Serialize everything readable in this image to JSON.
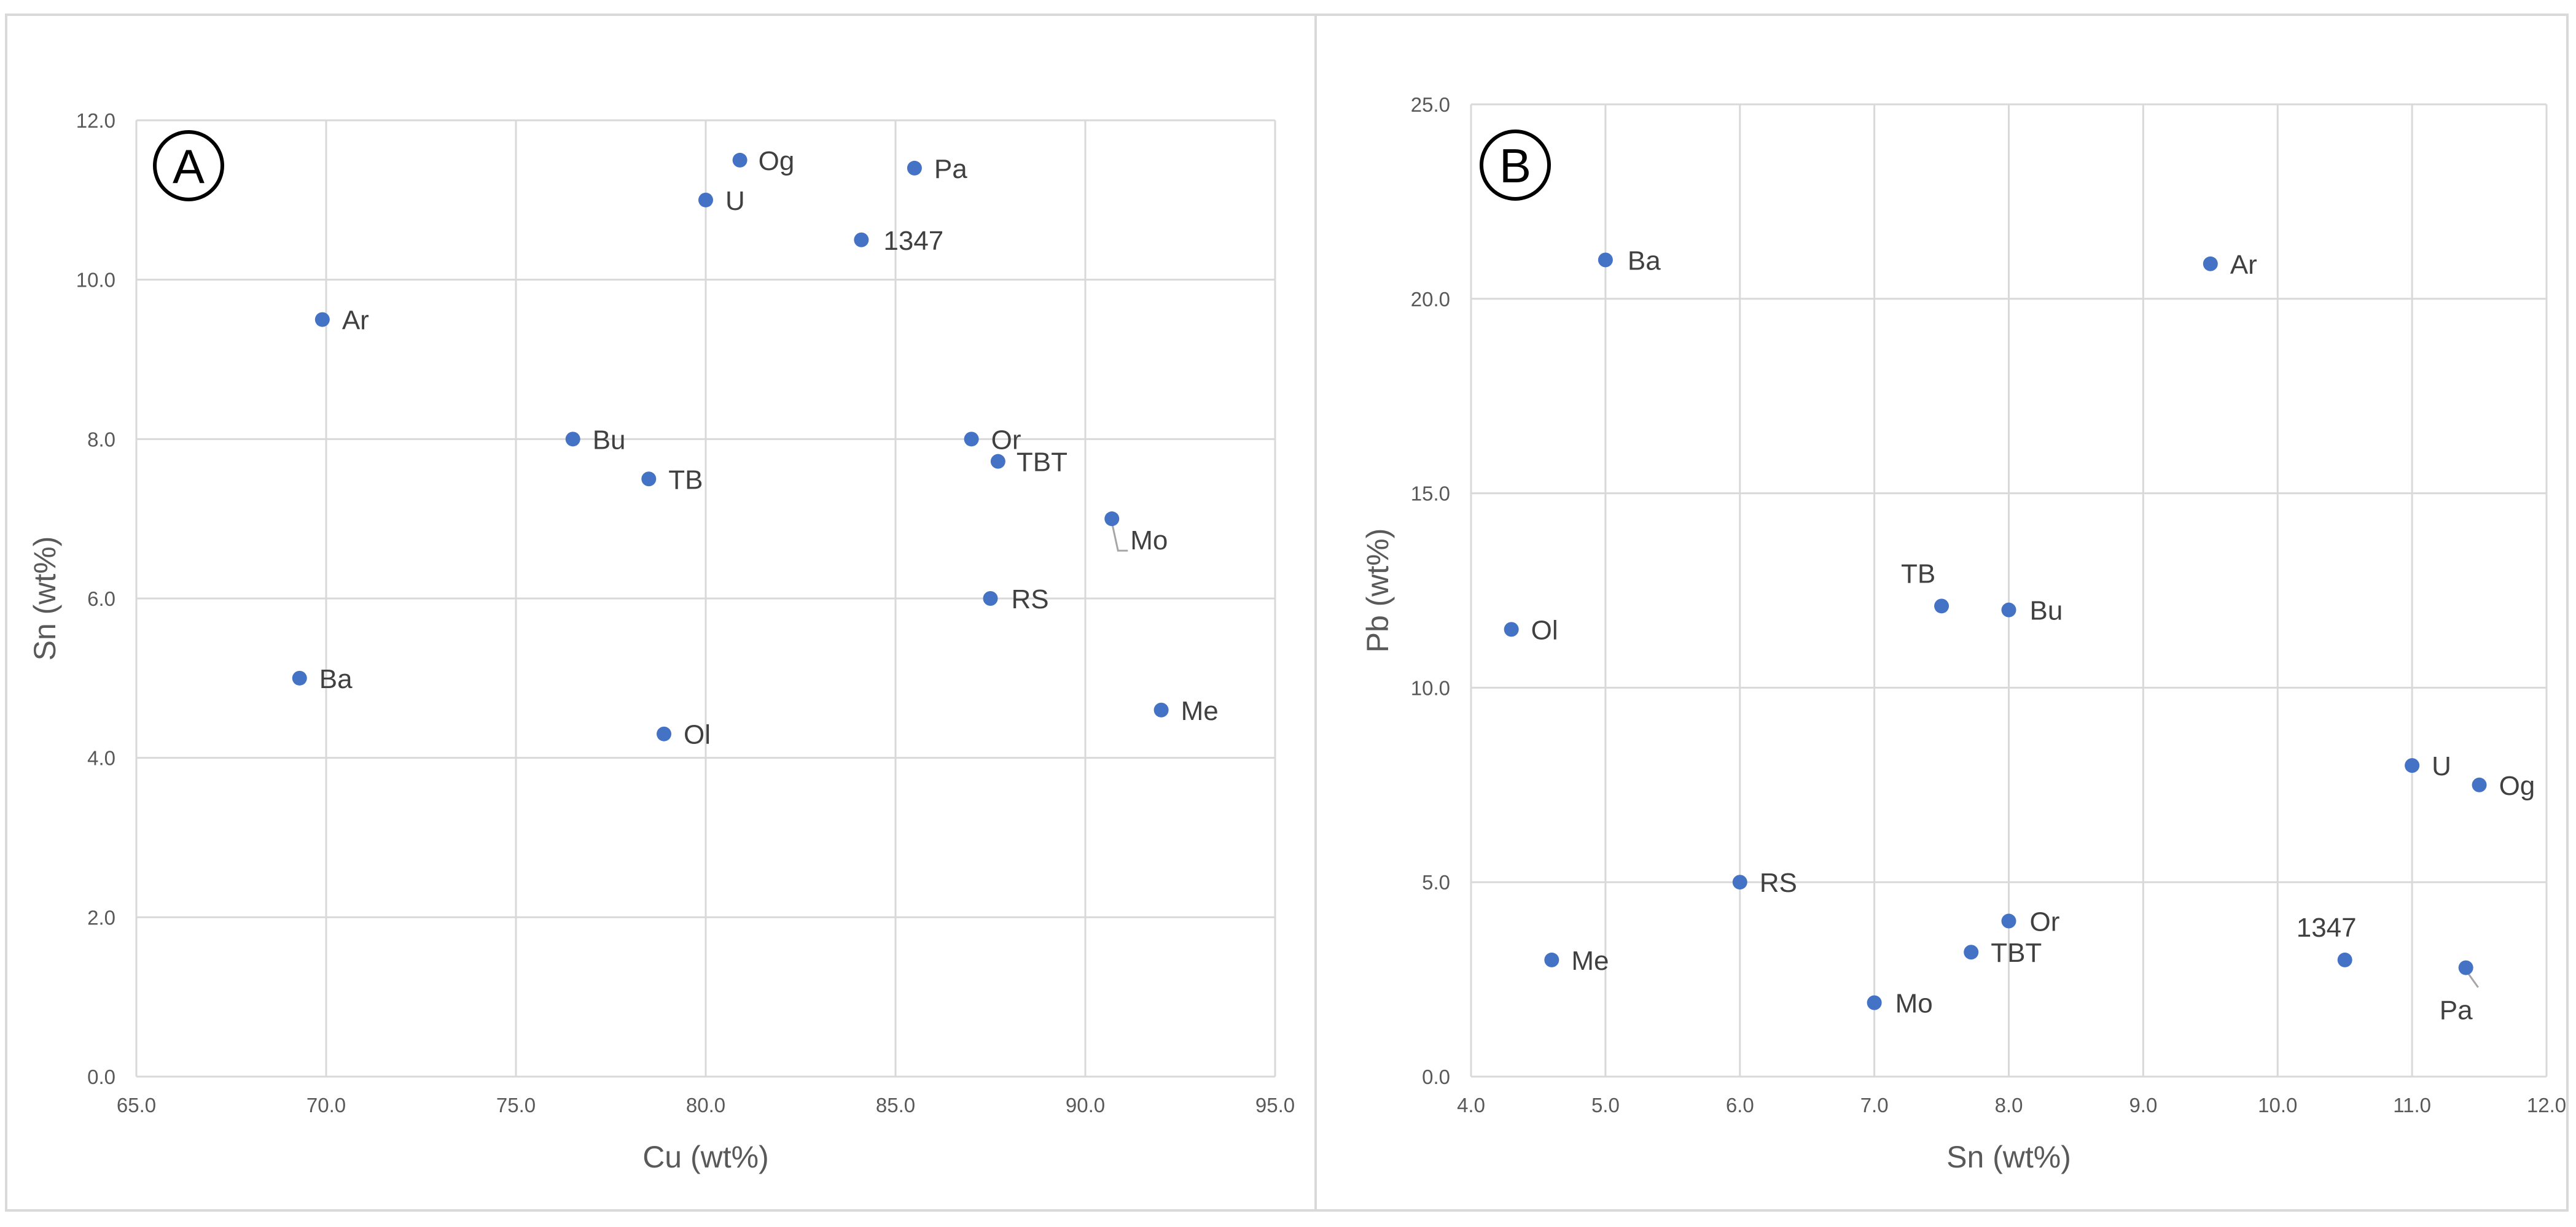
{
  "chart_data": [
    {
      "type": "scatter",
      "panel_label": "A",
      "xlabel": "Cu (wt%)",
      "ylabel": "Sn (wt%)",
      "xlim": [
        65.0,
        95.0
      ],
      "ylim": [
        0.0,
        12.0
      ],
      "xticks": [
        "65.0",
        "70.0",
        "75.0",
        "80.0",
        "85.0",
        "90.0",
        "95.0"
      ],
      "yticks": [
        "0.0",
        "2.0",
        "4.0",
        "6.0",
        "8.0",
        "10.0",
        "12.0"
      ],
      "grid": true,
      "color": "#4472c4",
      "points": [
        {
          "label": "Og",
          "x": 80.9,
          "y": 11.5
        },
        {
          "label": "Pa",
          "x": 85.5,
          "y": 11.4
        },
        {
          "label": "U",
          "x": 80.0,
          "y": 11.0
        },
        {
          "label": "1347",
          "x": 84.1,
          "y": 10.5
        },
        {
          "label": "Ar",
          "x": 69.9,
          "y": 9.5
        },
        {
          "label": "Bu",
          "x": 76.5,
          "y": 8.0
        },
        {
          "label": "Or",
          "x": 87.0,
          "y": 8.0
        },
        {
          "label": "TBT",
          "x": 87.7,
          "y": 7.72
        },
        {
          "label": "TB",
          "x": 78.5,
          "y": 7.5
        },
        {
          "label": "Mo",
          "x": 90.7,
          "y": 7.0
        },
        {
          "label": "RS",
          "x": 87.5,
          "y": 6.0
        },
        {
          "label": "Ba",
          "x": 69.3,
          "y": 5.0
        },
        {
          "label": "Me",
          "x": 92.0,
          "y": 4.6
        },
        {
          "label": "Ol",
          "x": 78.9,
          "y": 4.3
        }
      ]
    },
    {
      "type": "scatter",
      "panel_label": "B",
      "xlabel": "Sn (wt%)",
      "ylabel": "Pb (wt%)",
      "xlim": [
        4.0,
        12.0
      ],
      "ylim": [
        0.0,
        25.0
      ],
      "xticks": [
        "4.0",
        "5.0",
        "6.0",
        "7.0",
        "8.0",
        "9.0",
        "10.0",
        "11.0",
        "12.0"
      ],
      "yticks": [
        "0.0",
        "5.0",
        "10.0",
        "15.0",
        "20.0",
        "25.0"
      ],
      "grid": true,
      "color": "#4472c4",
      "points": [
        {
          "label": "Ba",
          "x": 5.0,
          "y": 21.0
        },
        {
          "label": "Ar",
          "x": 9.5,
          "y": 20.9
        },
        {
          "label": "TB",
          "x": 7.5,
          "y": 12.1
        },
        {
          "label": "Bu",
          "x": 8.0,
          "y": 12.0
        },
        {
          "label": "Ol",
          "x": 4.3,
          "y": 11.5
        },
        {
          "label": "U",
          "x": 11.0,
          "y": 8.0
        },
        {
          "label": "Og",
          "x": 11.5,
          "y": 7.5
        },
        {
          "label": "RS",
          "x": 6.0,
          "y": 5.0
        },
        {
          "label": "Or",
          "x": 8.0,
          "y": 4.0
        },
        {
          "label": "TBT",
          "x": 7.72,
          "y": 3.2
        },
        {
          "label": "Me",
          "x": 4.6,
          "y": 3.0
        },
        {
          "label": "1347",
          "x": 10.5,
          "y": 3.0
        },
        {
          "label": "Pa",
          "x": 11.4,
          "y": 2.8
        },
        {
          "label": "Mo",
          "x": 7.0,
          "y": 1.9
        }
      ]
    }
  ]
}
